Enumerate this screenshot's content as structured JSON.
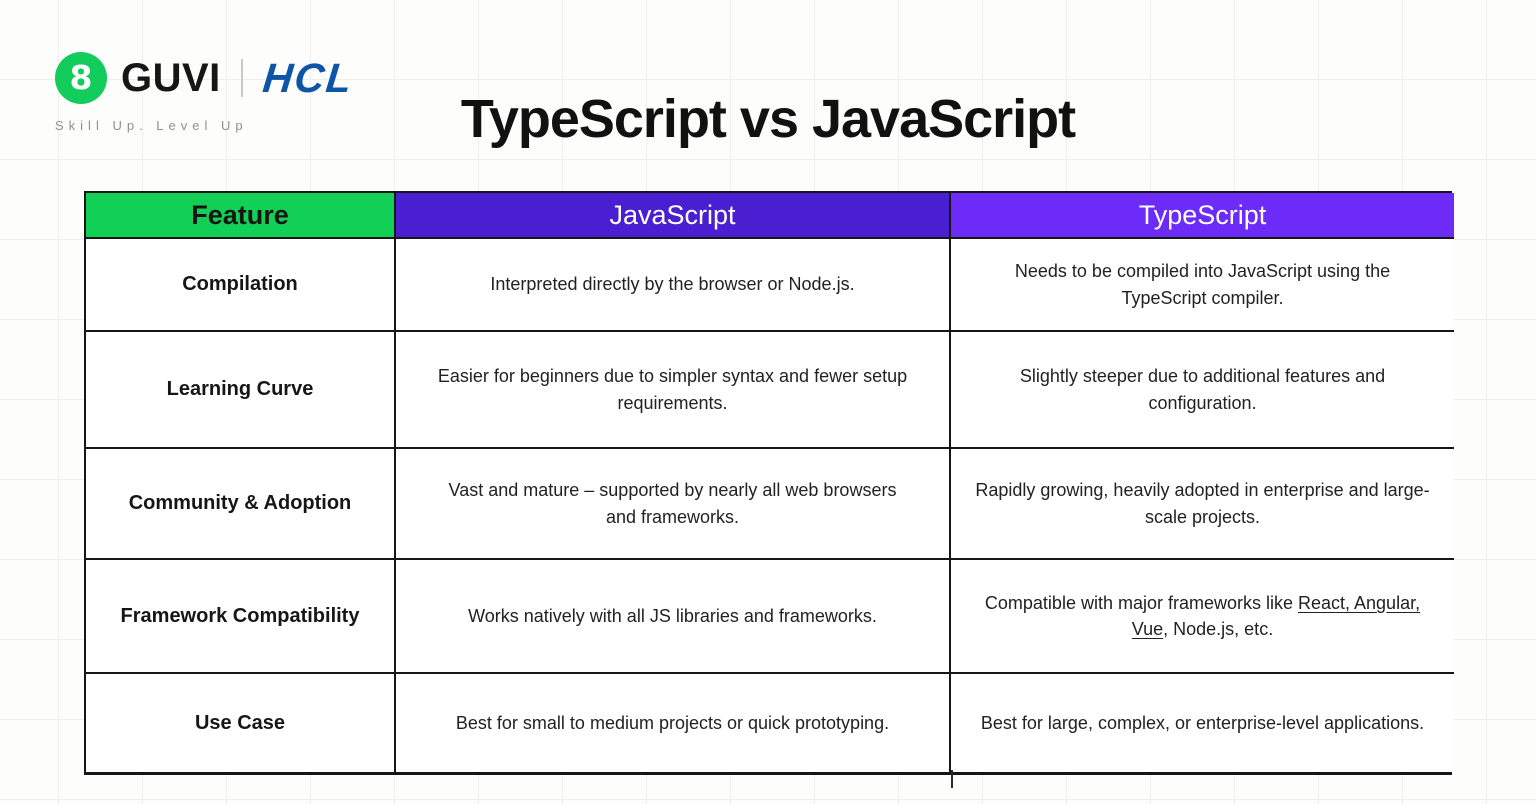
{
  "logo": {
    "brand": "GUVI",
    "partner": "HCL",
    "tagline": "Skill Up. Level Up",
    "icon_glyph": "8",
    "brand_color": "#161616",
    "partner_color": "#0e55a8",
    "badge_color": "#12cc5c"
  },
  "title": "TypeScript vs JavaScript",
  "table": {
    "columns": [
      {
        "label": "Feature",
        "color": "#12cf55"
      },
      {
        "label": "JavaScript",
        "color": "#4a1fd2"
      },
      {
        "label": "TypeScript",
        "color": "#6c2bf7"
      }
    ],
    "rows": [
      {
        "feature": "Compilation",
        "javascript": "Interpreted directly by the browser or Node.js.",
        "typescript": "Needs to be compiled into JavaScript using the TypeScript compiler."
      },
      {
        "feature": "Learning Curve",
        "javascript": "Easier for beginners due to simpler syntax and fewer setup requirements.",
        "typescript": "Slightly steeper due to additional features and configuration."
      },
      {
        "feature": "Community & Adoption",
        "javascript": "Vast and mature – supported by nearly all web browsers and frameworks.",
        "typescript": "Rapidly growing, heavily adopted in enterprise and large-scale projects."
      },
      {
        "feature": "Framework Compatibility",
        "javascript": "Works natively with all JS libraries and frameworks.",
        "typescript_segments": [
          {
            "text": "Compatible with major frameworks like ",
            "underline": false
          },
          {
            "text": "React, Angular, Vue",
            "underline": true
          },
          {
            "text": ", Node.js, etc.",
            "underline": false
          }
        ]
      },
      {
        "feature": "Use Case",
        "javascript": "Best for small to medium projects or quick prototyping.",
        "typescript": "Best for large, complex, or enterprise-level applications."
      }
    ]
  }
}
